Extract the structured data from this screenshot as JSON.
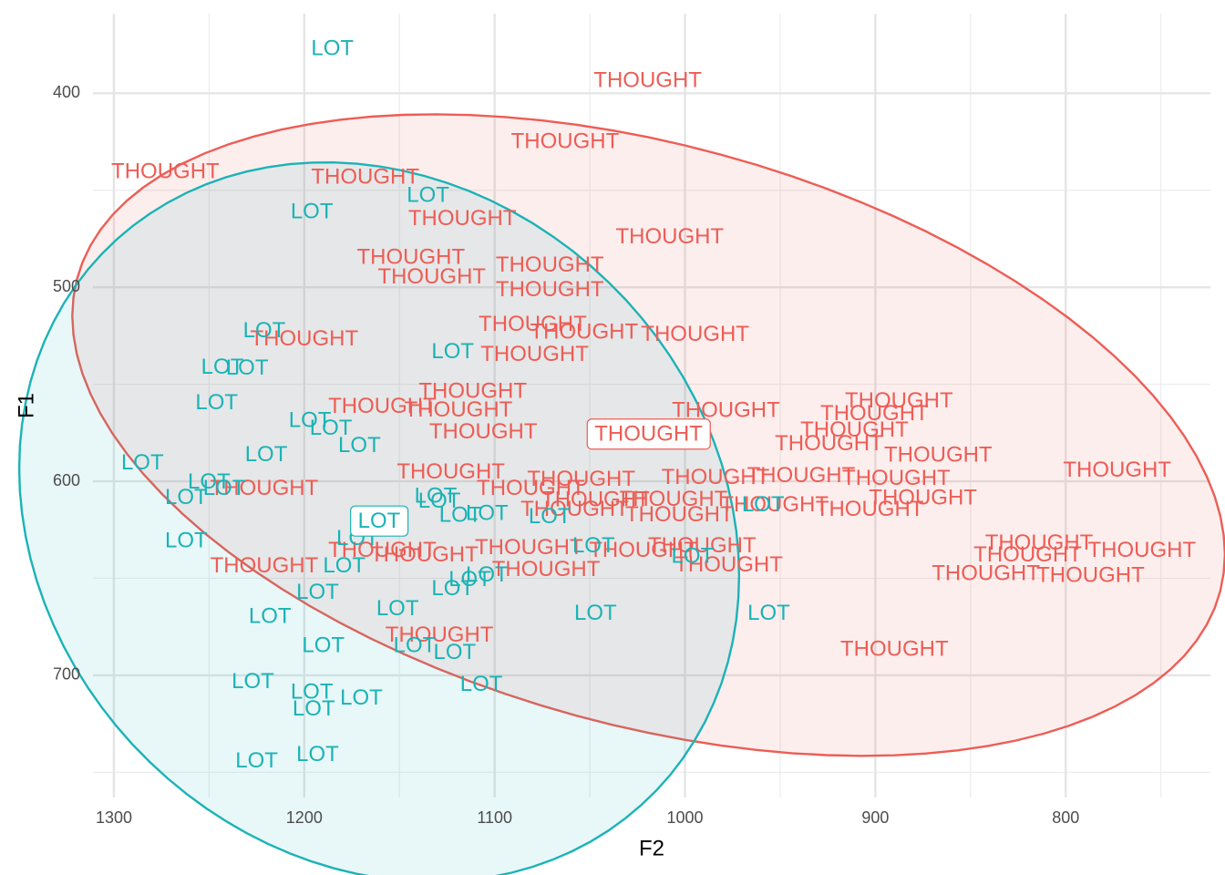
{
  "chart_data": {
    "type": "text-scatter",
    "x_label": "F2",
    "y_label": "F1",
    "xlim": [
      1311,
      724
    ],
    "ylim": [
      359,
      763
    ],
    "xticks": [
      1300,
      1200,
      1100,
      1000,
      900,
      800
    ],
    "yticks": [
      400,
      500,
      600,
      700
    ],
    "x_reversed": true,
    "y_reversed": true,
    "grid": true,
    "ellipse": true,
    "mean_labels": true,
    "series": [
      {
        "name": "THOUGHT",
        "color": "#ED5D55",
        "x": [
          1019.6,
          1063,
          1273,
          1168,
          1117,
          1008,
          1144,
          1133,
          1071,
          1071,
          1080,
          1053,
          994.7,
          1200,
          1079,
          1111.5,
          1159,
          1119,
          1106,
          978.5,
          900.5,
          887.6,
          911,
          924.4,
          867,
          773,
          1123,
          1054.5,
          984,
          939,
          889,
          1081,
          1047,
          1006,
          953,
          903,
          875,
          1058,
          1003,
          1221,
          1221,
          1159,
          1137,
          1082,
          1022,
          991,
          977,
          1073,
          814,
          820,
          760,
          842,
          787,
          1129,
          890
        ],
        "y": [
          393.9,
          425.4,
          440.9,
          443.7,
          464.9,
          474.3,
          485,
          495,
          489,
          501.6,
          519.4,
          523.6,
          524.6,
          527,
          535,
          554,
          561.7,
          563.6,
          575,
          564,
          565.5,
          559,
          574,
          581,
          587,
          594.6,
          595.6,
          599.4,
          598.4,
          597.5,
          598.9,
          604,
          610,
          609.6,
          612.5,
          614.9,
          609,
          614.9,
          617.7,
          604,
          644,
          636,
          638.4,
          634.6,
          636,
          633.7,
          643.5,
          645.9,
          632.3,
          638.3,
          635.9,
          648,
          649,
          679.7,
          687
        ]
      },
      {
        "name": "LOT",
        "color": "#1BB3B6",
        "x": [
          1185.2,
          1196,
          1135,
          1221,
          1243,
          1230,
          1246,
          1122,
          1197,
          1186,
          1171,
          1220,
          1285,
          1250,
          1242,
          1262,
          1262,
          1129,
          1118,
          1104,
          1172,
          1071,
          1179,
          1193,
          1218,
          1151,
          1122,
          1104,
          1113,
          1047,
          1048,
          996,
          1190,
          1142,
          1121,
          1227,
          1196,
          1195,
          1170,
          1107,
          1225,
          1193,
          956,
          959,
          1131
        ],
        "y": [
          377.4,
          461.6,
          453,
          522.7,
          541.5,
          542,
          560,
          533.5,
          569,
          573,
          582,
          586.6,
          591,
          600.7,
          604,
          608.7,
          631,
          610.6,
          618,
          617,
          630,
          618.6,
          644,
          657.6,
          670,
          666,
          655.8,
          648.7,
          651,
          668.5,
          633.7,
          639,
          685,
          685,
          688.7,
          703.7,
          709,
          717.8,
          712,
          705,
          744.6,
          741.3,
          668.5,
          612.5,
          608
        ]
      }
    ]
  }
}
